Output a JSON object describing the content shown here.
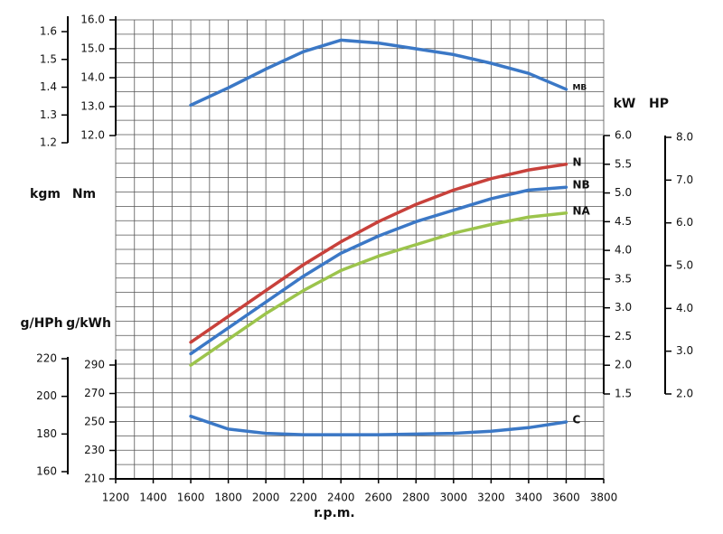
{
  "chart_data": {
    "type": "line",
    "x": [
      1600,
      1800,
      2000,
      2200,
      2400,
      2600,
      2800,
      3000,
      3200,
      3400,
      3600
    ],
    "xlim": [
      1200,
      3800
    ],
    "xticks": [
      1200,
      1400,
      1600,
      1800,
      2000,
      2200,
      2400,
      2600,
      2800,
      3000,
      3200,
      3400,
      3600,
      3800
    ],
    "xlabel": "r.p.m.",
    "grid": true,
    "axes": [
      {
        "id": "kgm",
        "label": "kgm",
        "lim": [
          1.2,
          1.6
        ],
        "ticks": [
          1.2,
          1.3,
          1.4,
          1.5,
          1.6
        ]
      },
      {
        "id": "nm",
        "label": "Nm",
        "lim": [
          12,
          16
        ],
        "ticks": [
          {
            "value": 12,
            "label": "12.0"
          },
          {
            "value": 13,
            "label": "13.0"
          },
          {
            "value": 14,
            "label": "14.0"
          },
          {
            "value": 15,
            "label": "15.0"
          },
          {
            "value": 16,
            "label": "16.0"
          }
        ]
      },
      {
        "id": "kw",
        "label": "kW",
        "lim": [
          1.5,
          6
        ],
        "ticks": [
          1.5,
          {
            "value": 2,
            "label": "2.0"
          },
          2.5,
          {
            "value": 3,
            "label": "3.0"
          },
          3.5,
          {
            "value": 4,
            "label": "4.0"
          },
          4.5,
          {
            "value": 5,
            "label": "5.0"
          },
          5.5,
          {
            "value": 6,
            "label": "6.0"
          }
        ]
      },
      {
        "id": "hp",
        "label": "HP",
        "lim": [
          2,
          8
        ],
        "ticks": [
          {
            "value": 2,
            "label": "2.0"
          },
          {
            "value": 3,
            "label": "3.0"
          },
          {
            "value": 4,
            "label": "4.0"
          },
          {
            "value": 5,
            "label": "5.0"
          },
          {
            "value": 6,
            "label": "6.0"
          },
          {
            "value": 7,
            "label": "7.0"
          },
          {
            "value": 8,
            "label": "8.0"
          }
        ]
      },
      {
        "id": "gkwh",
        "label": "g/kWh",
        "lim": [
          210,
          290
        ],
        "ticks": [
          210,
          230,
          250,
          270,
          290
        ]
      },
      {
        "id": "ghph",
        "label": "g/HPh",
        "lim": [
          160,
          220
        ],
        "ticks": [
          160,
          180,
          200,
          220
        ]
      }
    ],
    "series": [
      {
        "name": "MB",
        "color": "#3b78c6",
        "axis": "nm",
        "values": [
          13.05,
          13.65,
          14.3,
          14.9,
          15.3,
          15.2,
          15.0,
          14.8,
          14.5,
          14.15,
          13.6
        ]
      },
      {
        "name": "N",
        "color": "#c8413b",
        "axis": "kw",
        "values": [
          2.4,
          2.85,
          3.3,
          3.75,
          4.15,
          4.5,
          4.8,
          5.05,
          5.25,
          5.4,
          5.5
        ]
      },
      {
        "name": "NB",
        "color": "#3b78c6",
        "axis": "kw",
        "values": [
          2.2,
          2.65,
          3.1,
          3.55,
          3.95,
          4.25,
          4.5,
          4.7,
          4.9,
          5.05,
          5.1
        ]
      },
      {
        "name": "NA",
        "color": "#9cc44c",
        "axis": "kw",
        "values": [
          2.0,
          2.45,
          2.9,
          3.3,
          3.65,
          3.9,
          4.1,
          4.3,
          4.45,
          4.58,
          4.65
        ]
      },
      {
        "name": "C",
        "color": "#3b78c6",
        "axis": "gkwh",
        "values": [
          254,
          245,
          242,
          241,
          241,
          241,
          241.5,
          242,
          243.5,
          246,
          250
        ]
      }
    ]
  }
}
